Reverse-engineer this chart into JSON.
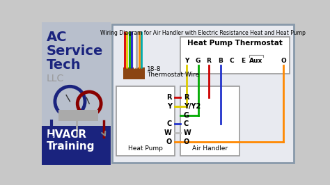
{
  "bg_color": "#c8c8c8",
  "left_panel_bg": "#b8bfcc",
  "left_panel_bottom_bg": "#1a237e",
  "main_panel_bg": "#e8eaf0",
  "main_panel_border": "#8899aa",
  "title_text": "Wiring Diagram for Air Handler with Electric Resistance Heat and Heat Pump",
  "thermostat_title": "Heat Pump Thermostat",
  "thermostat_terminals": [
    "Y",
    "G",
    "R",
    "B",
    "C",
    "E",
    "Aux",
    "O"
  ],
  "wire_label_line1": "18-8",
  "wire_label_line2": "Thermostat Wire",
  "heat_pump_label": "Heat Pump",
  "air_handler_label": "Air Handler",
  "hvacr_line1": "HVACR",
  "hvacr_line2": "Training",
  "ac_service_lines": [
    "AC",
    "Service",
    "Tech"
  ],
  "llc_text": "LLC",
  "bundle_colors": [
    "#dd0000",
    "#ddcc00",
    "#00aa00",
    "#2222cc",
    "#ffffff",
    "#aaaaaa",
    "#ff8800",
    "#00aaaa"
  ],
  "red": "#cc0000",
  "yellow": "#ddcc00",
  "green": "#00aa00",
  "blue": "#2233cc",
  "gray": "#bbbbbb",
  "orange": "#ff8800",
  "wire_lw": 2.0
}
